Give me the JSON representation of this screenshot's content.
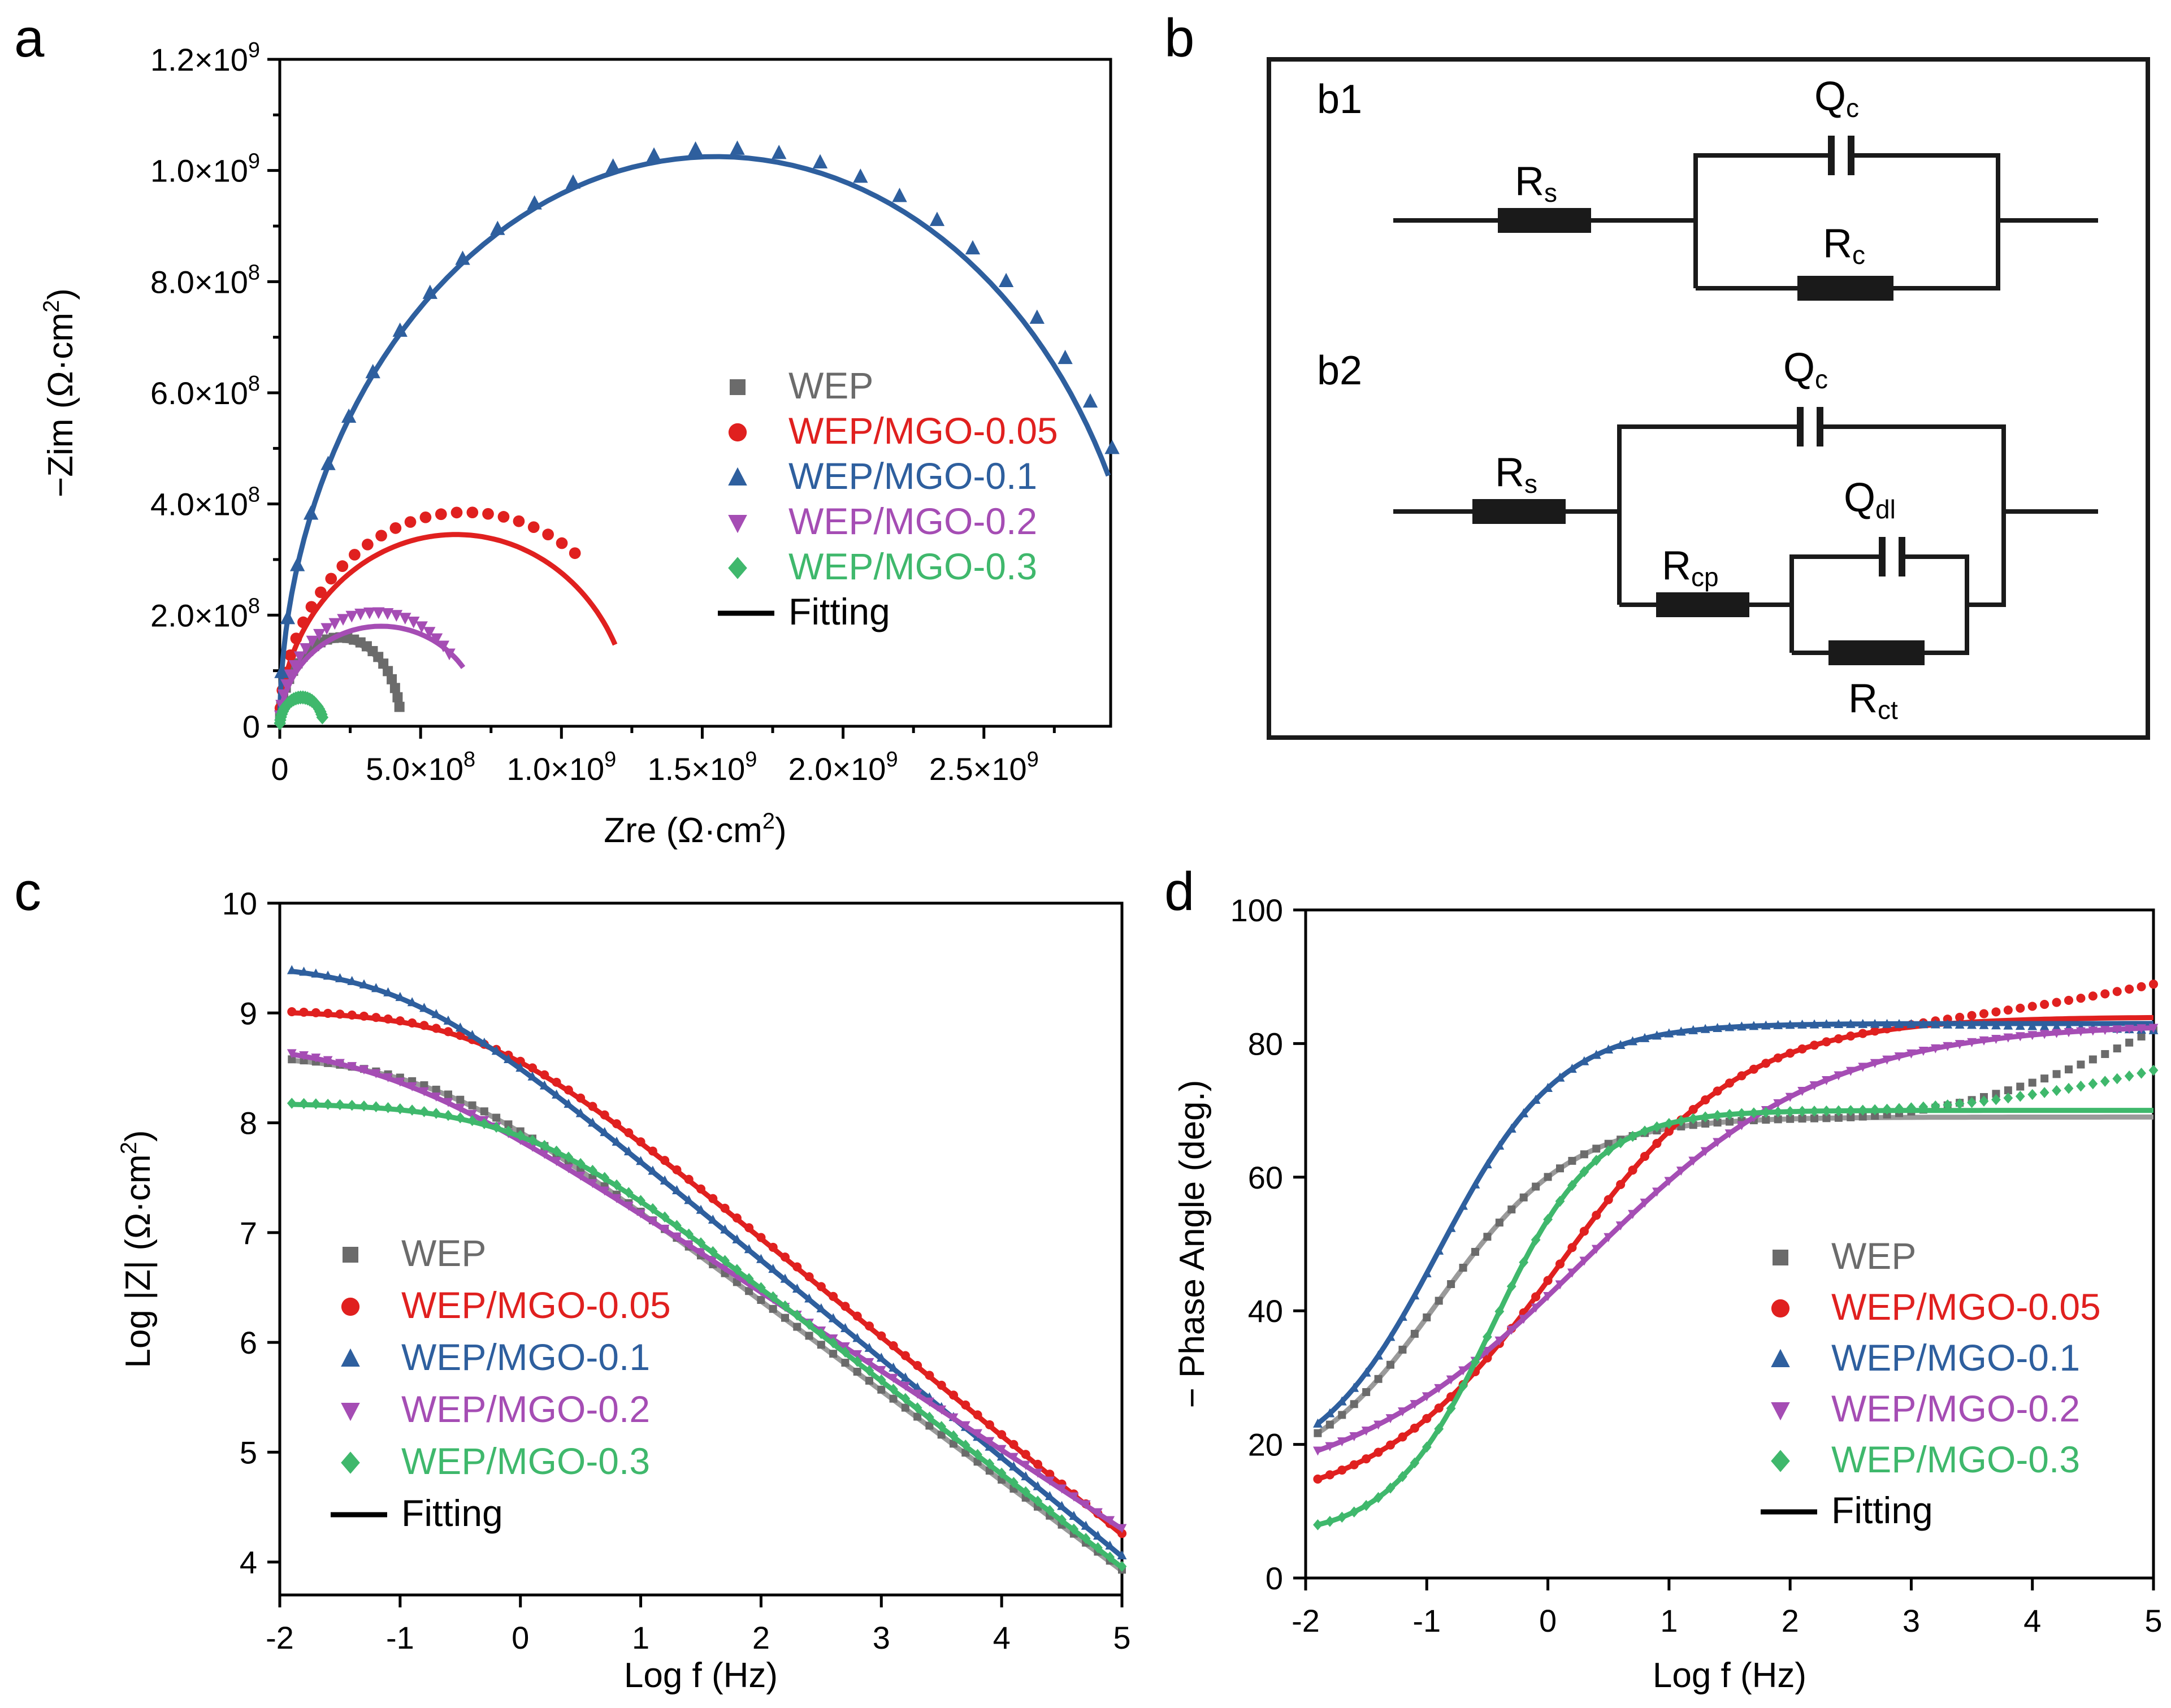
{
  "colors": {
    "WEP": "#6b6b6b",
    "WEP/MGO-0.05": "#e0201f",
    "WEP/MGO-0.1": "#2e5f9e",
    "WEP/MGO-0.2": "#a54db4",
    "WEP/MGO-0.3": "#3fb86c",
    "fit_WEP": "#9a9a9a",
    "Fitting": "#000000"
  },
  "legend": [
    "WEP",
    "WEP/MGO-0.05",
    "WEP/MGO-0.1",
    "WEP/MGO-0.2",
    "WEP/MGO-0.3"
  ],
  "legend_fit": "Fitting",
  "panels": {
    "a": "a",
    "b": "b",
    "c": "c",
    "d": "d"
  },
  "chart_data": [
    {
      "id": "a",
      "type": "scatter",
      "title": "",
      "xlabel_main": "Zre (Ω·cm",
      "xlabel_sup": "2",
      "xlabel_end": ")",
      "ylabel_main": "−Zim (Ω·cm",
      "ylabel_sup": "2",
      "ylabel_end": ")",
      "xlim": [
        0,
        2950000000.0
      ],
      "ylim": [
        0,
        1200000000.0
      ],
      "xticks": [
        {
          "v": 0,
          "m": "0",
          "e": ""
        },
        {
          "v": 500000000.0,
          "m": "5.0×10",
          "e": "8"
        },
        {
          "v": 1000000000.0,
          "m": "1.0×10",
          "e": "9"
        },
        {
          "v": 1500000000.0,
          "m": "1.5×10",
          "e": "9"
        },
        {
          "v": 2000000000.0,
          "m": "2.0×10",
          "e": "9"
        },
        {
          "v": 2500000000.0,
          "m": "2.5×10",
          "e": "9"
        }
      ],
      "yticks": [
        {
          "v": 0,
          "m": "0",
          "e": ""
        },
        {
          "v": 200000000.0,
          "m": "2.0×10",
          "e": "8"
        },
        {
          "v": 400000000.0,
          "m": "4.0×10",
          "e": "8"
        },
        {
          "v": 600000000.0,
          "m": "6.0×10",
          "e": "8"
        },
        {
          "v": 800000000.0,
          "m": "8.0×10",
          "e": "8"
        },
        {
          "v": 1000000000.0,
          "m": "1.0×10",
          "e": "9"
        },
        {
          "v": 1200000000.0,
          "m": "1.2×10",
          "e": "9"
        }
      ],
      "series": [
        {
          "name": "WEP",
          "marker": "square",
          "semicircle": {
            "r0": 0,
            "r1": 430000000.0,
            "peak": 160000000.0,
            "end": 0.93
          },
          "fit": {
            "r0": 0,
            "r1": 430000000.0,
            "peak": 155000000.0,
            "end": 0.93
          }
        },
        {
          "name": "WEP/MGO-0.05",
          "marker": "circle",
          "semicircle": {
            "r0": 0,
            "r1": 1320000000.0,
            "peak": 385000000.0,
            "end": 0.7
          },
          "fit": {
            "r0": 0,
            "r1": 1250000000.0,
            "peak": 345000000.0,
            "end": 0.86
          }
        },
        {
          "name": "WEP/MGO-0.1",
          "marker": "triangle",
          "semicircle": {
            "r0": 0,
            "r1": 3150000000.0,
            "peak": 1040000000.0,
            "end": 0.84
          },
          "fit": {
            "r0": 0,
            "r1": 3100000000.0,
            "peak": 1025000000.0,
            "end": 0.855
          }
        },
        {
          "name": "WEP/MGO-0.2",
          "marker": "triangle-down",
          "semicircle": {
            "r0": 0,
            "r1": 680000000.0,
            "peak": 205000000.0,
            "end": 0.78
          },
          "fit": {
            "r0": 0,
            "r1": 720000000.0,
            "peak": 180000000.0,
            "end": 0.8
          }
        },
        {
          "name": "WEP/MGO-0.3",
          "marker": "diamond",
          "semicircle": {
            "r0": 0,
            "r1": 155000000.0,
            "peak": 52000000.0,
            "end": 0.9
          },
          "fit": {
            "r0": 0,
            "r1": 155000000.0,
            "peak": 52000000.0,
            "end": 0.9
          }
        }
      ]
    },
    {
      "id": "b",
      "type": "circuit",
      "labels": {
        "b1": "b1",
        "b2": "b2",
        "Qc": "Q",
        "Qc_sub": "c",
        "Rs": "R",
        "Rs_sub": "s",
        "Rc": "R",
        "Rc_sub": "c",
        "Rcp": "R",
        "Rcp_sub": "cp",
        "Qdl": "Q",
        "Qdl_sub": "dl",
        "Rct": "R",
        "Rct_sub": "ct"
      }
    },
    {
      "id": "c",
      "type": "line",
      "xlabel": "Log f (Hz)",
      "ylabel": "Log |Z| (Ω·cm",
      "ylabel_sup": "2",
      "ylabel_end": ")",
      "xlim": [
        -2,
        5
      ],
      "ylim": [
        3.7,
        10
      ],
      "xticks": [
        -2,
        -1,
        0,
        1,
        2,
        3,
        4,
        5
      ],
      "yticks": [
        4,
        5,
        6,
        7,
        8,
        9,
        10
      ],
      "series": [
        {
          "name": "WEP",
          "marker": "square",
          "plateau": 8.62,
          "fc": -0.55,
          "slope": 0.82,
          "hf": 3.92
        },
        {
          "name": "WEP/MGO-0.05",
          "marker": "circle",
          "plateau": 9.02,
          "fc": -0.5,
          "slope": 0.9,
          "hf": 4.25
        },
        {
          "name": "WEP/MGO-0.1",
          "marker": "triangle",
          "plateau": 9.45,
          "fc": -1.1,
          "slope": 0.9,
          "hf": 4.05
        },
        {
          "name": "WEP/MGO-0.2",
          "marker": "triangle-down",
          "plateau": 8.75,
          "fc": -1.3,
          "slope": 0.72,
          "hf": 4.3
        },
        {
          "name": "WEP/MGO-0.3",
          "marker": "diamond",
          "plateau": 8.18,
          "fc": -0.3,
          "slope": 0.85,
          "hf": 3.95
        }
      ]
    },
    {
      "id": "d",
      "type": "line",
      "xlabel": "Log f (Hz)",
      "ylabel": "− Phase Angle (deg.)",
      "xlim": [
        -2,
        5
      ],
      "ylim": [
        0,
        100
      ],
      "xticks": [
        -2,
        -1,
        0,
        1,
        2,
        3,
        4,
        5
      ],
      "yticks": [
        0,
        20,
        40,
        60,
        80,
        100
      ],
      "series": [
        {
          "name": "WEP",
          "marker": "square",
          "low": 14,
          "high": 69,
          "mid": -0.9,
          "width": 0.55,
          "tail": 82
        },
        {
          "name": "WEP/MGO-0.05",
          "marker": "circle",
          "low": 10,
          "high": 84,
          "mid": 0.1,
          "width": 0.75,
          "tail": 89
        },
        {
          "name": "WEP/MGO-0.1",
          "marker": "triangle",
          "low": 15,
          "high": 83,
          "mid": -0.9,
          "width": 0.5,
          "tail": 82
        },
        {
          "name": "WEP/MGO-0.2",
          "marker": "triangle-down",
          "low": 12,
          "high": 83,
          "mid": 0.3,
          "width": 1.0,
          "tail": 83
        },
        {
          "name": "WEP/MGO-0.3",
          "marker": "diamond",
          "low": 6,
          "high": 70,
          "mid": -0.45,
          "width": 0.42,
          "tail": 76
        }
      ]
    }
  ]
}
